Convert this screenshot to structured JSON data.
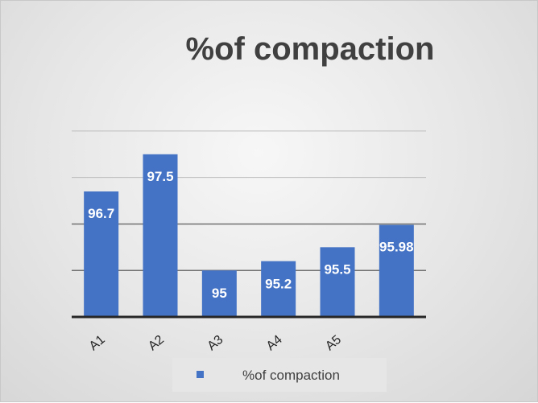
{
  "chart_data": {
    "type": "bar",
    "title": "%of compaction",
    "categories": [
      "A1",
      "A2",
      "A3",
      "A4",
      "A5",
      ""
    ],
    "series": [
      {
        "name": "%of compaction",
        "values": [
          96.7,
          97.5,
          95,
          95.2,
          95.5,
          95.98
        ],
        "labels": [
          "96.7",
          "97.5",
          "95",
          "95.2",
          "95.5",
          "95.98"
        ],
        "color": "#4472c4"
      }
    ],
    "ylim": [
      94,
      98.5
    ],
    "grid": true,
    "legend": "bottom",
    "xlabel": "",
    "ylabel": ""
  }
}
